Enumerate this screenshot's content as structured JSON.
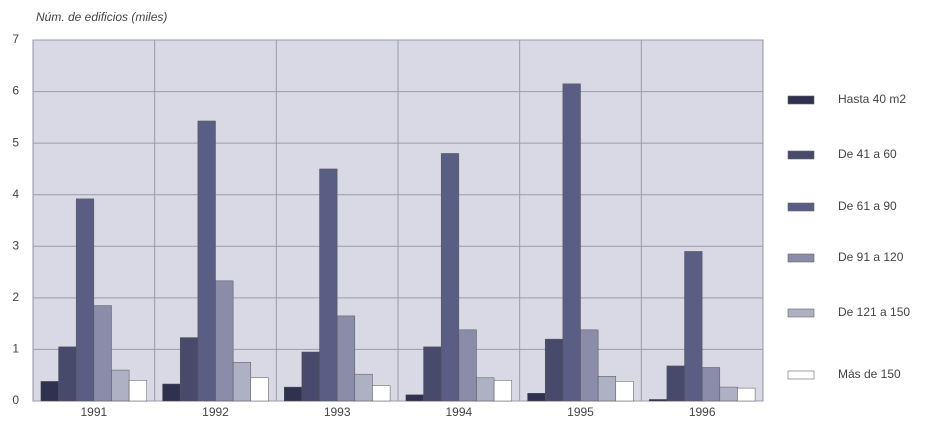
{
  "chart_data": {
    "type": "bar",
    "y_label": "Núm. de edificios (miles)",
    "categories": [
      "1991",
      "1992",
      "1993",
      "1994",
      "1995",
      "1996"
    ],
    "series": [
      {
        "name": "Hasta 40 m2",
        "color": "#2f3150",
        "values": [
          0.38,
          0.33,
          0.27,
          0.12,
          0.15,
          0.03
        ]
      },
      {
        "name": "De 41 a 60",
        "color": "#474a6b",
        "values": [
          1.05,
          1.23,
          0.95,
          1.05,
          1.2,
          0.68
        ]
      },
      {
        "name": "De 61 a 90",
        "color": "#5b5e84",
        "values": [
          3.92,
          5.43,
          4.5,
          4.8,
          6.15,
          2.9
        ]
      },
      {
        "name": "De 91 a 120",
        "color": "#8a8ca9",
        "values": [
          1.85,
          2.33,
          1.65,
          1.38,
          1.38,
          0.65
        ]
      },
      {
        "name": "De 121 a 150",
        "color": "#aeb0c4",
        "values": [
          0.6,
          0.75,
          0.52,
          0.45,
          0.48,
          0.27
        ]
      },
      {
        "name": "Más de 150",
        "color": "#ffffff",
        "values": [
          0.4,
          0.45,
          0.3,
          0.4,
          0.38,
          0.25
        ]
      }
    ],
    "ylim": [
      0,
      7
    ],
    "yticks": [
      0,
      1,
      2,
      3,
      4,
      5,
      6,
      7
    ],
    "grid": true,
    "legend": "right"
  }
}
